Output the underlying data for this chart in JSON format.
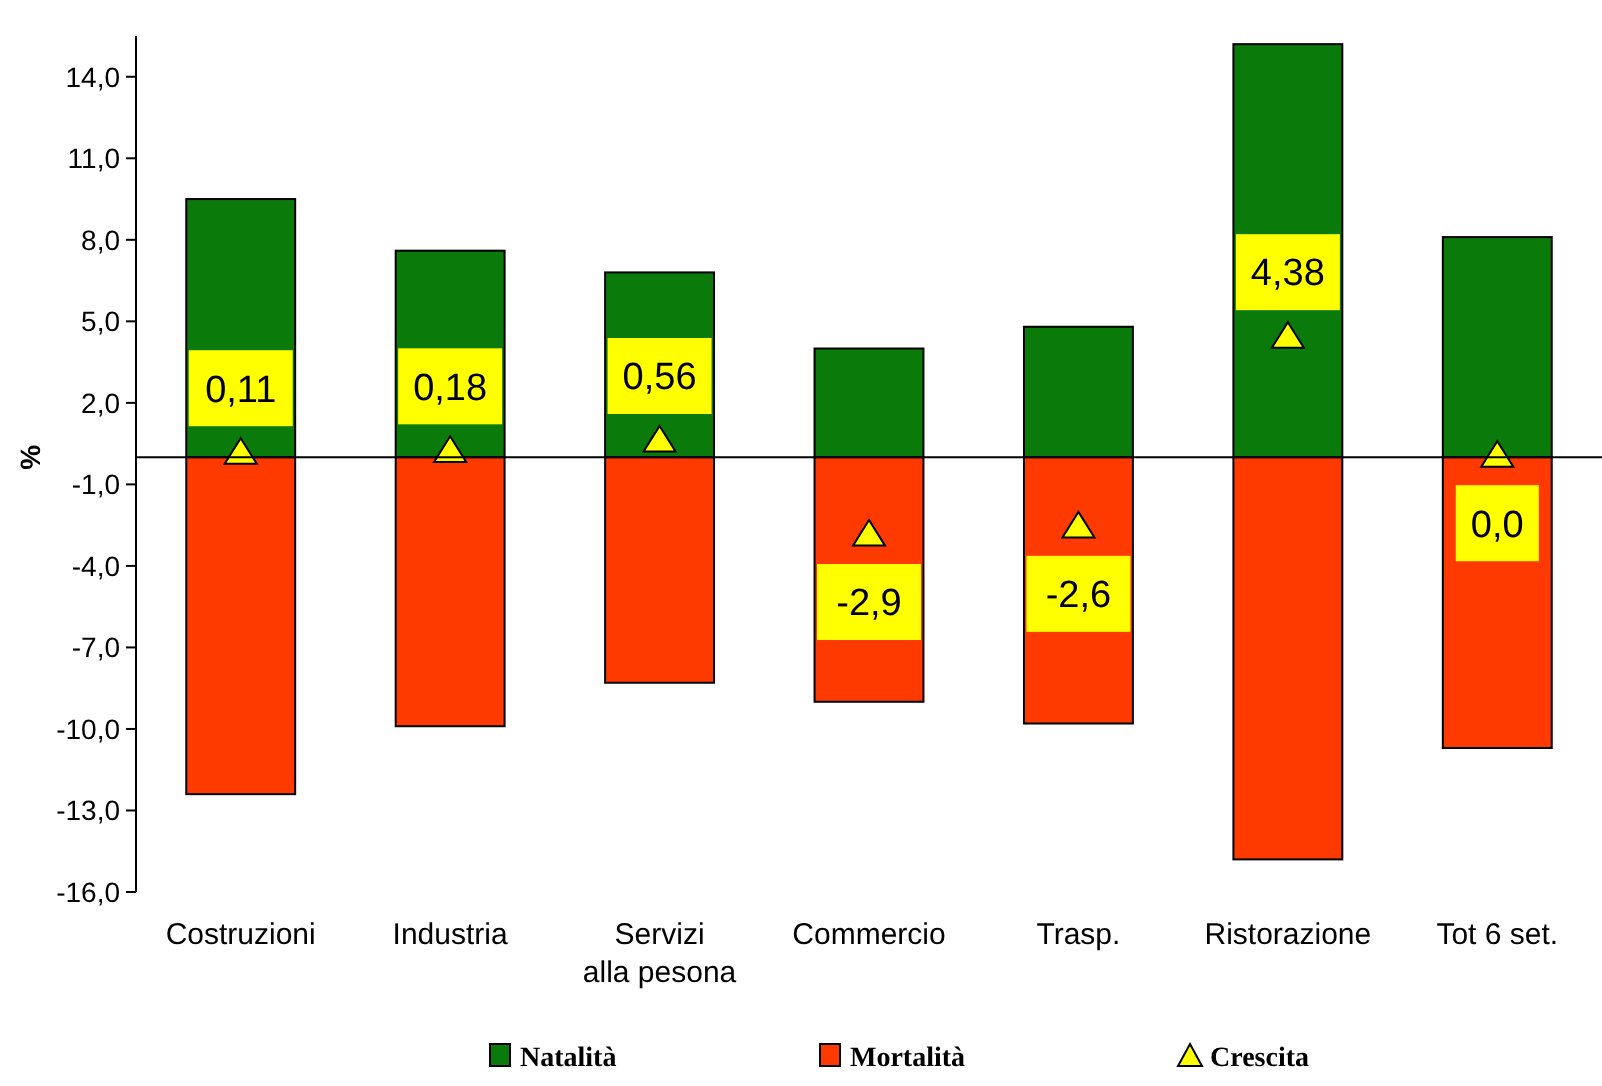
{
  "chart_data": {
    "type": "bar",
    "stacked": true,
    "ylabel": "%",
    "categories": [
      "Costruzioni",
      "Industria",
      "Servizi alla pesona",
      "Commercio",
      "Trasp.",
      "Ristorazione",
      "Tot 6 set."
    ],
    "series": [
      {
        "name": "Natalità",
        "color": "#0a7a0a",
        "values": [
          9.5,
          7.6,
          6.8,
          4.0,
          4.8,
          15.2,
          8.1
        ]
      },
      {
        "name": "Mortalità",
        "color": "#ff3a00",
        "values": [
          -12.4,
          -9.9,
          -8.3,
          -9.0,
          -9.8,
          -14.8,
          -10.7
        ]
      },
      {
        "name": "Crescita",
        "type": "scatter",
        "color": "#ffff00",
        "marker": "triangle",
        "x": [
          "Costruzioni",
          "Industria",
          "Servizi alla pesona",
          "Commercio",
          "Trasp.",
          "Ristorazione",
          "Tot 6 set."
        ],
        "values": [
          0.11,
          0.18,
          0.56,
          -2.9,
          -2.6,
          4.38,
          0.0
        ],
        "value_labels": [
          "0,11",
          "0,18",
          "0,56",
          "-2,9",
          "-2,6",
          "4,38",
          "0,0"
        ]
      }
    ],
    "ylim": [
      -16,
      15.5
    ],
    "yticks": [
      {
        "value": 14,
        "label": "14,0"
      },
      {
        "value": 11,
        "label": "11,0"
      },
      {
        "value": 8,
        "label": "8,0"
      },
      {
        "value": 5,
        "label": "5,0"
      },
      {
        "value": 2,
        "label": "2,0"
      },
      {
        "value": -1,
        "label": "-1,0"
      },
      {
        "value": -4,
        "label": "-4,0"
      },
      {
        "value": -7,
        "label": "-7,0"
      },
      {
        "value": -10,
        "label": "-10,0"
      },
      {
        "value": -13,
        "label": "-13,0"
      },
      {
        "value": -16,
        "label": "-16,0"
      }
    ],
    "grid": false,
    "legend": "bottom"
  }
}
